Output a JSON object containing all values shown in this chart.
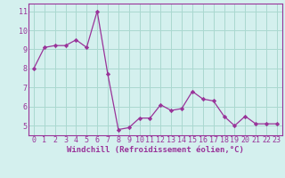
{
  "x": [
    0,
    1,
    2,
    3,
    4,
    5,
    6,
    7,
    8,
    9,
    10,
    11,
    12,
    13,
    14,
    15,
    16,
    17,
    18,
    19,
    20,
    21,
    22,
    23
  ],
  "y": [
    8.0,
    9.1,
    9.2,
    9.2,
    9.5,
    9.1,
    11.0,
    7.7,
    4.8,
    4.9,
    5.4,
    5.4,
    6.1,
    5.8,
    5.9,
    6.8,
    6.4,
    6.3,
    5.5,
    5.0,
    5.5,
    5.1,
    5.1,
    5.1
  ],
  "line_color": "#993399",
  "marker": "D",
  "marker_size": 2.2,
  "background_color": "#d4f0ee",
  "grid_color": "#aad8d0",
  "xlabel": "Windchill (Refroidissement éolien,°C)",
  "yticks": [
    5,
    6,
    7,
    8,
    9,
    10,
    11
  ],
  "xticks": [
    0,
    1,
    2,
    3,
    4,
    5,
    6,
    7,
    8,
    9,
    10,
    11,
    12,
    13,
    14,
    15,
    16,
    17,
    18,
    19,
    20,
    21,
    22,
    23
  ],
  "ylim": [
    4.5,
    11.4
  ],
  "xlim": [
    -0.5,
    23.5
  ],
  "axis_label_fontsize": 6.5,
  "tick_fontsize": 6.0,
  "tick_color": "#993399",
  "label_color": "#993399",
  "spine_color": "#993399"
}
